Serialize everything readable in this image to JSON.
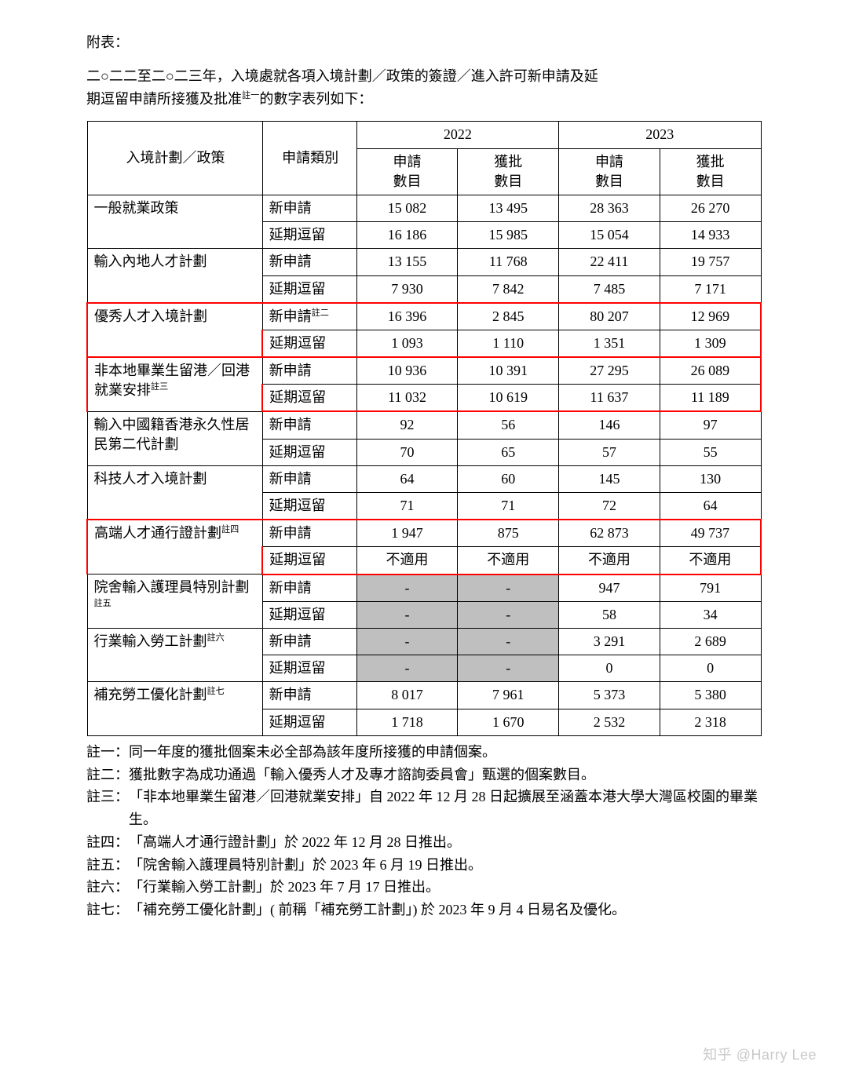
{
  "header_label": "附表：",
  "intro_line1": "二○二二至二○二三年，入境處就各項入境計劃／政策的簽證／進入許可新申請及延",
  "intro_line2_a": "期逗留申請所接獲及批准",
  "intro_line2_sup": "註一",
  "intro_line2_b": "的數字表列如下：",
  "table": {
    "head_policy": "入境計劃／政策",
    "head_type": "申請類別",
    "year_2022": "2022",
    "year_2023": "2023",
    "sub_apply": "申請",
    "sub_apply2": "數目",
    "sub_grant": "獲批",
    "sub_grant2": "數目",
    "rows": [
      {
        "policy": "一般就業政策",
        "sup": "",
        "type_new": "新申請",
        "new_sup": "",
        "y22a": "15 082",
        "y22g": "13 495",
        "y23a": "28 363",
        "y23g": "26 270",
        "type_ext": "延期逗留",
        "e22a": "16 186",
        "e22g": "15 985",
        "e23a": "15 054",
        "e23g": "14 933",
        "grey": false,
        "highlight": false
      },
      {
        "policy": "輸入內地人才計劃",
        "sup": "",
        "type_new": "新申請",
        "new_sup": "",
        "y22a": "13 155",
        "y22g": "11 768",
        "y23a": "22 411",
        "y23g": "19 757",
        "type_ext": "延期逗留",
        "e22a": "7 930",
        "e22g": "7 842",
        "e23a": "7 485",
        "e23g": "7 171",
        "grey": false,
        "highlight": false
      },
      {
        "policy": "優秀人才入境計劃",
        "sup": "",
        "type_new": "新申請",
        "new_sup": "註二",
        "y22a": "16 396",
        "y22g": "2 845",
        "y23a": "80 207",
        "y23g": "12 969",
        "type_ext": "延期逗留",
        "e22a": "1 093",
        "e22g": "1 110",
        "e23a": "1 351",
        "e23g": "1 309",
        "grey": false,
        "highlight": true
      },
      {
        "policy": "非本地畢業生留港／回港就業安排",
        "sup": "註三",
        "type_new": "新申請",
        "new_sup": "",
        "y22a": "10 936",
        "y22g": "10 391",
        "y23a": "27 295",
        "y23g": "26 089",
        "type_ext": "延期逗留",
        "e22a": "11 032",
        "e22g": "10 619",
        "e23a": "11 637",
        "e23g": "11 189",
        "grey": false,
        "highlight": true
      },
      {
        "policy": "輸入中國籍香港永久性居民第二代計劃",
        "sup": "",
        "type_new": "新申請",
        "new_sup": "",
        "y22a": "92",
        "y22g": "56",
        "y23a": "146",
        "y23g": "97",
        "type_ext": "延期逗留",
        "e22a": "70",
        "e22g": "65",
        "e23a": "57",
        "e23g": "55",
        "grey": false,
        "highlight": false
      },
      {
        "policy": "科技人才入境計劃",
        "sup": "",
        "type_new": "新申請",
        "new_sup": "",
        "y22a": "64",
        "y22g": "60",
        "y23a": "145",
        "y23g": "130",
        "type_ext": "延期逗留",
        "e22a": "71",
        "e22g": "71",
        "e23a": "72",
        "e23g": "64",
        "grey": false,
        "highlight": false
      },
      {
        "policy": "高端人才通行證計劃",
        "sup": "註四",
        "type_new": "新申請",
        "new_sup": "",
        "y22a": "1 947",
        "y22g": "875",
        "y23a": "62 873",
        "y23g": "49 737",
        "type_ext": "延期逗留",
        "e22a": "不適用",
        "e22g": "不適用",
        "e23a": "不適用",
        "e23g": "不適用",
        "grey": false,
        "highlight": true
      },
      {
        "policy": "院舍輸入護理員特別計劃",
        "sup": "註五",
        "type_new": "新申請",
        "new_sup": "",
        "y22a": "-",
        "y22g": "-",
        "y23a": "947",
        "y23g": "791",
        "type_ext": "延期逗留",
        "e22a": "-",
        "e22g": "-",
        "e23a": "58",
        "e23g": "34",
        "grey": true,
        "highlight": false
      },
      {
        "policy": "行業輸入勞工計劃",
        "sup": "註六",
        "type_new": "新申請",
        "new_sup": "",
        "y22a": "-",
        "y22g": "-",
        "y23a": "3 291",
        "y23g": "2 689",
        "type_ext": "延期逗留",
        "e22a": "-",
        "e22g": "-",
        "e23a": "0",
        "e23g": "0",
        "grey": true,
        "highlight": false
      },
      {
        "policy": "補充勞工優化計劃",
        "sup": "註七",
        "type_new": "新申請",
        "new_sup": "",
        "y22a": "8 017",
        "y22g": "7 961",
        "y23a": "5 373",
        "y23g": "5 380",
        "type_ext": "延期逗留",
        "e22a": "1 718",
        "e22g": "1 670",
        "e23a": "2 532",
        "e23g": "2 318",
        "grey": false,
        "highlight": false
      }
    ]
  },
  "notes": [
    {
      "k": "註一：",
      "v": "同一年度的獲批個案未必全部為該年度所接獲的申請個案。"
    },
    {
      "k": "註二：",
      "v": "獲批數字為成功通過「輸入優秀人才及專才諮詢委員會」甄選的個案數目。"
    },
    {
      "k": "註三：",
      "v": "「非本地畢業生留港／回港就業安排」自 2022 年 12 月 28 日起擴展至涵蓋本港大學大灣區校園的畢業生。"
    },
    {
      "k": "註四：",
      "v": "「高端人才通行證計劃」於 2022 年 12 月 28 日推出。"
    },
    {
      "k": "註五：",
      "v": "「院舍輸入護理員特別計劃」於 2023 年 6 月 19 日推出。"
    },
    {
      "k": "註六：",
      "v": "「行業輸入勞工計劃」於 2023 年 7 月 17 日推出。"
    },
    {
      "k": "註七：",
      "v": "「補充勞工優化計劃」( 前稱「補充勞工計劃」) 於 2023 年 9 月 4 日易名及優化。"
    }
  ],
  "watermark": "知乎 @Harry Lee"
}
